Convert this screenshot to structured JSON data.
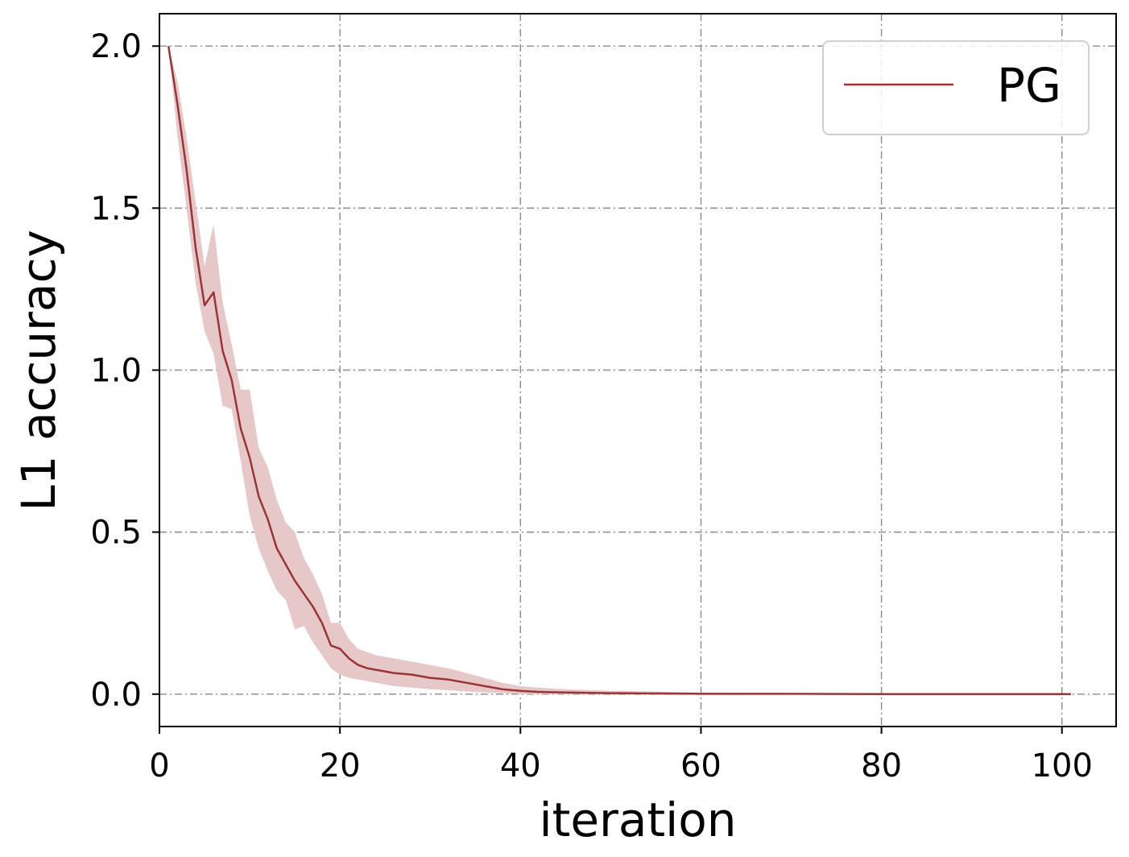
{
  "chart_data": {
    "type": "line",
    "title": "",
    "xlabel": "iteration",
    "ylabel": "L1 accuracy",
    "xlim": [
      0,
      106
    ],
    "ylim": [
      -0.1,
      2.1
    ],
    "xticks": [
      0,
      20,
      40,
      60,
      80,
      100
    ],
    "yticks": [
      0.0,
      0.5,
      1.0,
      1.5,
      2.0
    ],
    "xtick_labels": [
      "0",
      "20",
      "40",
      "60",
      "80",
      "100"
    ],
    "ytick_labels": [
      "0.0",
      "0.5",
      "1.0",
      "1.5",
      "2.0"
    ],
    "grid": true,
    "legend_position": "top-right",
    "series": [
      {
        "name": "PG",
        "color": "#9b3535",
        "band_color": "#e6c8c8",
        "x": [
          1,
          2,
          3,
          4,
          5,
          6,
          7,
          8,
          9,
          10,
          11,
          12,
          13,
          14,
          15,
          16,
          17,
          18,
          19,
          20,
          21,
          22,
          23,
          24,
          25,
          26,
          28,
          30,
          32,
          34,
          36,
          38,
          40,
          42,
          45,
          50,
          55,
          60,
          70,
          80,
          90,
          101
        ],
        "y": [
          2.0,
          1.82,
          1.62,
          1.38,
          1.2,
          1.24,
          1.06,
          0.97,
          0.82,
          0.73,
          0.61,
          0.54,
          0.45,
          0.4,
          0.35,
          0.31,
          0.27,
          0.22,
          0.15,
          0.14,
          0.11,
          0.09,
          0.08,
          0.075,
          0.07,
          0.065,
          0.06,
          0.05,
          0.045,
          0.035,
          0.025,
          0.015,
          0.01,
          0.007,
          0.005,
          0.003,
          0.002,
          0.001,
          0.001,
          0.0,
          0.0,
          0.0
        ],
        "lower": [
          2.0,
          1.72,
          1.5,
          1.27,
          1.12,
          1.05,
          0.89,
          0.88,
          0.72,
          0.55,
          0.45,
          0.38,
          0.32,
          0.29,
          0.2,
          0.21,
          0.16,
          0.12,
          0.08,
          0.06,
          0.05,
          0.045,
          0.04,
          0.035,
          0.03,
          0.025,
          0.02,
          0.015,
          0.012,
          0.008,
          0.005,
          0.003,
          0.0,
          0.0,
          0.0,
          0.0,
          0.0,
          0.0,
          0.0,
          0.0,
          0.0,
          0.0
        ],
        "upper": [
          2.0,
          1.89,
          1.72,
          1.52,
          1.32,
          1.45,
          1.21,
          1.08,
          0.94,
          0.94,
          0.76,
          0.7,
          0.6,
          0.53,
          0.5,
          0.42,
          0.37,
          0.31,
          0.22,
          0.22,
          0.17,
          0.14,
          0.13,
          0.12,
          0.115,
          0.11,
          0.1,
          0.09,
          0.08,
          0.065,
          0.05,
          0.035,
          0.025,
          0.02,
          0.015,
          0.01,
          0.008,
          0.005,
          0.003,
          0.002,
          0.001,
          0.001
        ]
      }
    ]
  }
}
